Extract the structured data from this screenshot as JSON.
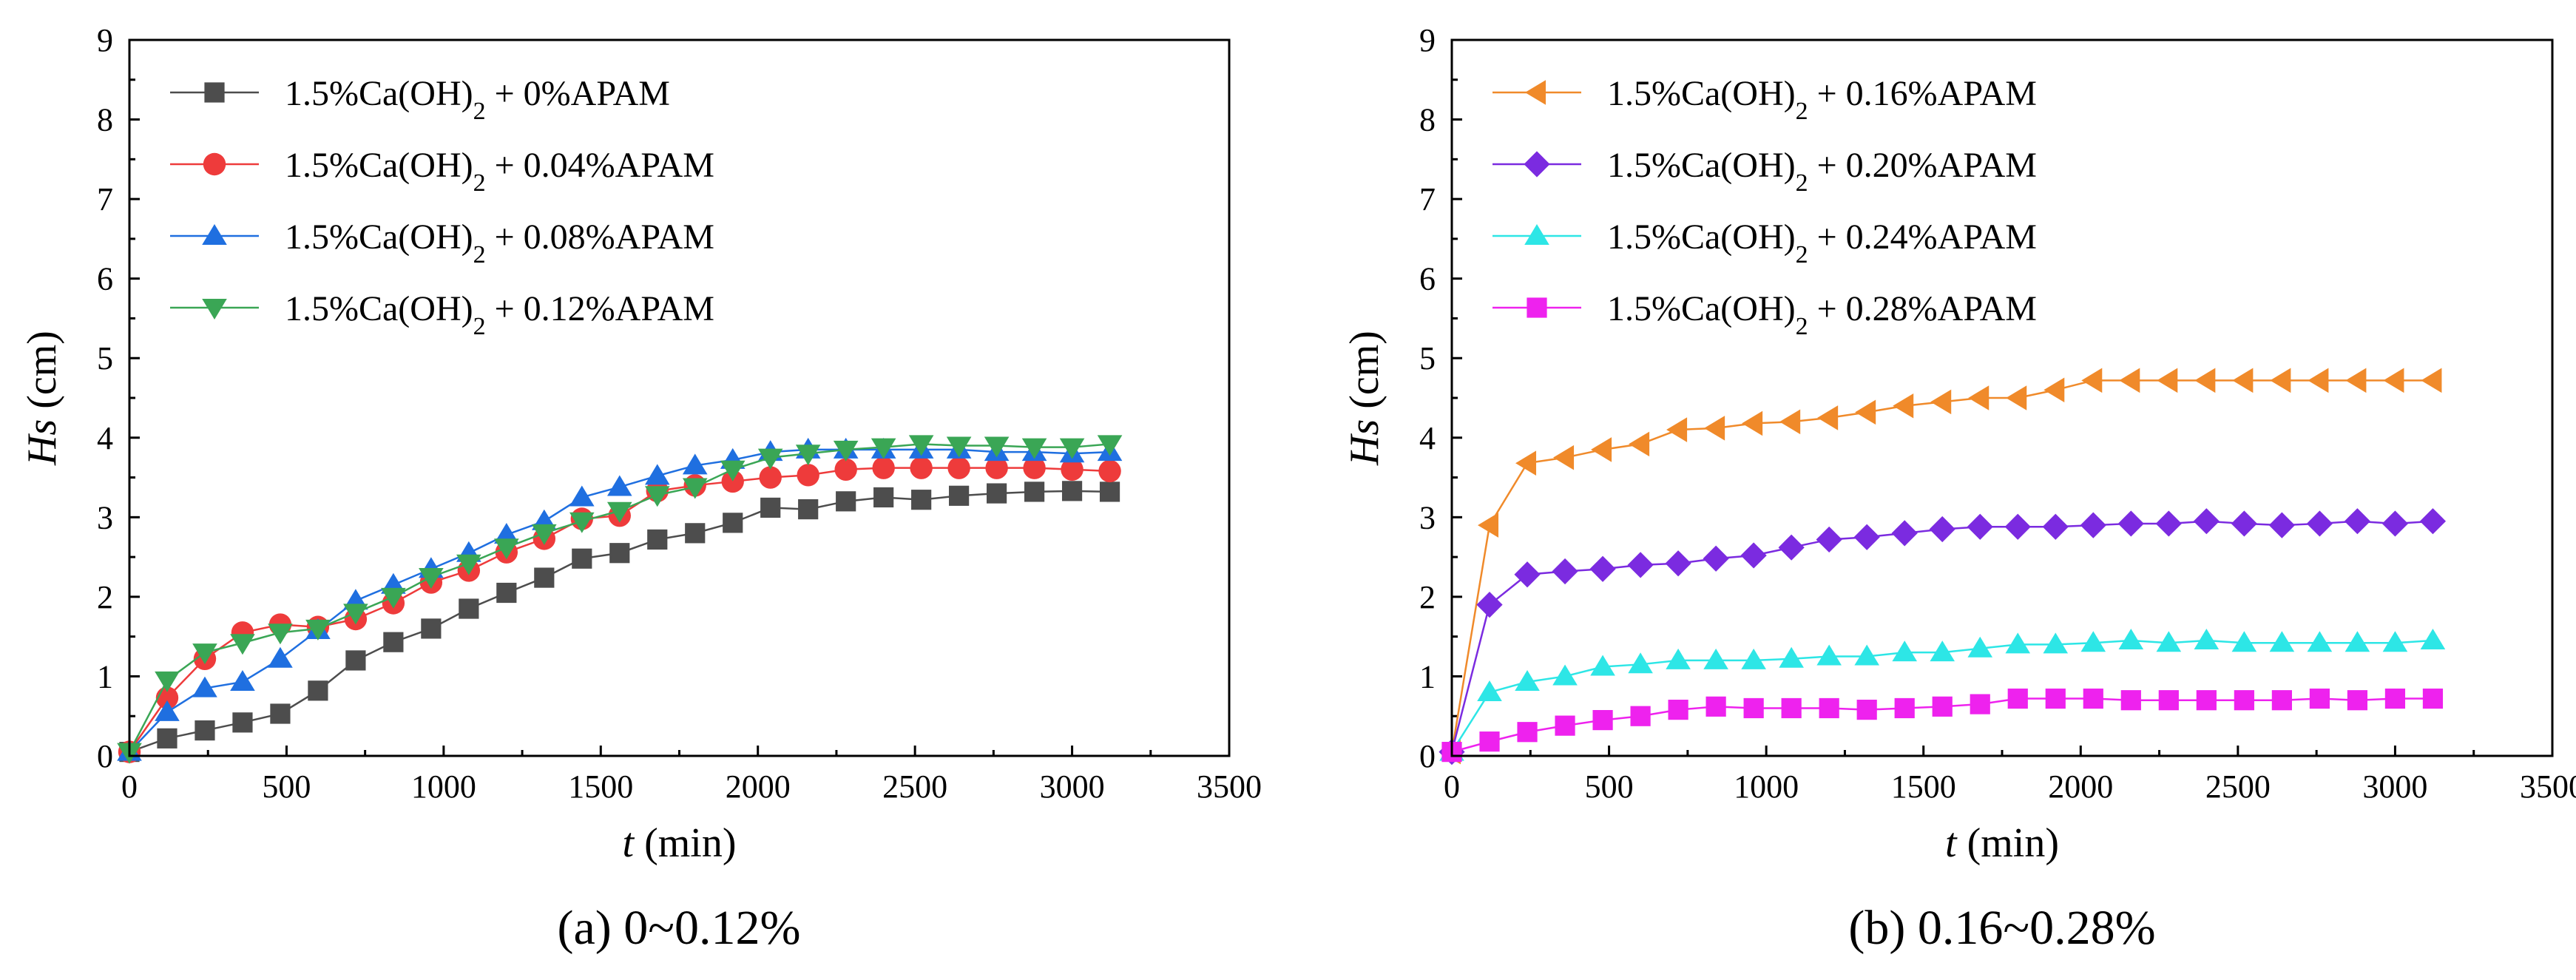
{
  "chart_data": [
    {
      "type": "line",
      "caption": {
        "letter": "(a)",
        "text": " 0~0.12%"
      },
      "xlabel": {
        "symbol": "t",
        "unit": " (min)"
      },
      "ylabel": {
        "symbol": "Hs",
        "unit": " (cm)"
      },
      "xlim": [
        0,
        3500
      ],
      "ylim": [
        0,
        9
      ],
      "xticks": [
        "0",
        "500",
        "1000",
        "1500",
        "2000",
        "2500",
        "3000",
        "3500"
      ],
      "yticks": [
        "0",
        "1",
        "2",
        "3",
        "4",
        "5",
        "6",
        "7",
        "8",
        "9"
      ],
      "legend_position": "top-left",
      "x": [
        0,
        120,
        240,
        360,
        480,
        600,
        720,
        840,
        960,
        1080,
        1200,
        1320,
        1440,
        1560,
        1680,
        1800,
        1920,
        2040,
        2160,
        2280,
        2400,
        2520,
        2640,
        2760,
        2880,
        3000,
        3120
      ],
      "series": [
        {
          "name_pre": "1.5%Ca(OH)",
          "name_sub": "2",
          "name_post": " + 0%APAM",
          "color": "#4d4d4d",
          "marker": "square",
          "values": [
            0.05,
            0.22,
            0.32,
            0.42,
            0.53,
            0.82,
            1.2,
            1.43,
            1.6,
            1.85,
            2.05,
            2.24,
            2.48,
            2.55,
            2.72,
            2.8,
            2.93,
            3.12,
            3.1,
            3.2,
            3.25,
            3.22,
            3.27,
            3.3,
            3.32,
            3.33,
            3.32
          ]
        },
        {
          "name_pre": "1.5%Ca(OH)",
          "name_sub": "2",
          "name_post": " + 0.04%APAM",
          "color": "#ee3b3b",
          "marker": "circle",
          "values": [
            0.05,
            0.73,
            1.22,
            1.55,
            1.65,
            1.62,
            1.72,
            1.92,
            2.18,
            2.33,
            2.56,
            2.73,
            2.98,
            3.02,
            3.33,
            3.4,
            3.45,
            3.5,
            3.53,
            3.6,
            3.62,
            3.62,
            3.62,
            3.62,
            3.62,
            3.6,
            3.58
          ]
        },
        {
          "name_pre": "1.5%Ca(OH)",
          "name_sub": "2",
          "name_post": " + 0.08%APAM",
          "color": "#1f6fe0",
          "marker": "triangle-up",
          "values": [
            0.05,
            0.55,
            0.85,
            0.93,
            1.22,
            1.58,
            1.95,
            2.15,
            2.35,
            2.55,
            2.78,
            2.95,
            3.25,
            3.38,
            3.52,
            3.65,
            3.72,
            3.82,
            3.85,
            3.85,
            3.85,
            3.85,
            3.85,
            3.82,
            3.82,
            3.8,
            3.82
          ]
        },
        {
          "name_pre": "1.5%Ca(OH)",
          "name_sub": "2",
          "name_post": " + 0.12%APAM",
          "color": "#3aa655",
          "marker": "triangle-down",
          "values": [
            0.05,
            0.95,
            1.3,
            1.42,
            1.55,
            1.6,
            1.8,
            2.0,
            2.25,
            2.42,
            2.62,
            2.8,
            2.95,
            3.08,
            3.28,
            3.38,
            3.6,
            3.75,
            3.8,
            3.85,
            3.88,
            3.92,
            3.9,
            3.9,
            3.88,
            3.88,
            3.92
          ]
        }
      ]
    },
    {
      "type": "line",
      "caption": {
        "letter": "(b)",
        "text": " 0.16~0.28%"
      },
      "xlabel": {
        "symbol": "t",
        "unit": " (min)"
      },
      "ylabel": {
        "symbol": "Hs",
        "unit": " (cm)"
      },
      "xlim": [
        0,
        3500
      ],
      "ylim": [
        0,
        9
      ],
      "xticks": [
        "0",
        "500",
        "1000",
        "1500",
        "2000",
        "2500",
        "3000",
        "3500"
      ],
      "yticks": [
        "0",
        "1",
        "2",
        "3",
        "4",
        "5",
        "6",
        "7",
        "8",
        "9"
      ],
      "legend_position": "top-left",
      "x": [
        0,
        120,
        240,
        360,
        480,
        600,
        720,
        840,
        960,
        1080,
        1200,
        1320,
        1440,
        1560,
        1680,
        1800,
        1920,
        2040,
        2160,
        2280,
        2400,
        2520,
        2640,
        2760,
        2880,
        3000,
        3120
      ],
      "series": [
        {
          "name_pre": "1.5%Ca(OH)",
          "name_sub": "2",
          "name_post": " + 0.16%APAM",
          "color": "#f08a2a",
          "marker": "triangle-left",
          "values": [
            0.05,
            2.9,
            3.68,
            3.75,
            3.85,
            3.92,
            4.1,
            4.12,
            4.18,
            4.2,
            4.25,
            4.32,
            4.4,
            4.45,
            4.5,
            4.5,
            4.6,
            4.72,
            4.72,
            4.72,
            4.72,
            4.72,
            4.72,
            4.72,
            4.72,
            4.72,
            4.72
          ]
        },
        {
          "name_pre": "1.5%Ca(OH)",
          "name_sub": "2",
          "name_post": " + 0.20%APAM",
          "color": "#7b2be0",
          "marker": "diamond",
          "values": [
            0.05,
            1.9,
            2.28,
            2.32,
            2.35,
            2.4,
            2.42,
            2.48,
            2.52,
            2.62,
            2.72,
            2.75,
            2.8,
            2.85,
            2.88,
            2.88,
            2.88,
            2.9,
            2.92,
            2.92,
            2.95,
            2.92,
            2.9,
            2.92,
            2.95,
            2.92,
            2.95
          ]
        },
        {
          "name_pre": "1.5%Ca(OH)",
          "name_sub": "2",
          "name_post": " + 0.24%APAM",
          "color": "#2de6e6",
          "marker": "triangle-up",
          "values": [
            0.05,
            0.8,
            0.93,
            1.0,
            1.12,
            1.15,
            1.2,
            1.2,
            1.2,
            1.22,
            1.25,
            1.25,
            1.3,
            1.3,
            1.35,
            1.4,
            1.4,
            1.42,
            1.45,
            1.42,
            1.45,
            1.42,
            1.42,
            1.42,
            1.42,
            1.42,
            1.45
          ]
        },
        {
          "name_pre": "1.5%Ca(OH)",
          "name_sub": "2",
          "name_post": " + 0.28%APAM",
          "color": "#ee22ee",
          "marker": "square",
          "values": [
            0.05,
            0.18,
            0.3,
            0.38,
            0.45,
            0.5,
            0.58,
            0.62,
            0.6,
            0.6,
            0.6,
            0.58,
            0.6,
            0.62,
            0.65,
            0.72,
            0.72,
            0.72,
            0.7,
            0.7,
            0.7,
            0.7,
            0.7,
            0.72,
            0.7,
            0.72,
            0.72
          ]
        }
      ]
    }
  ]
}
